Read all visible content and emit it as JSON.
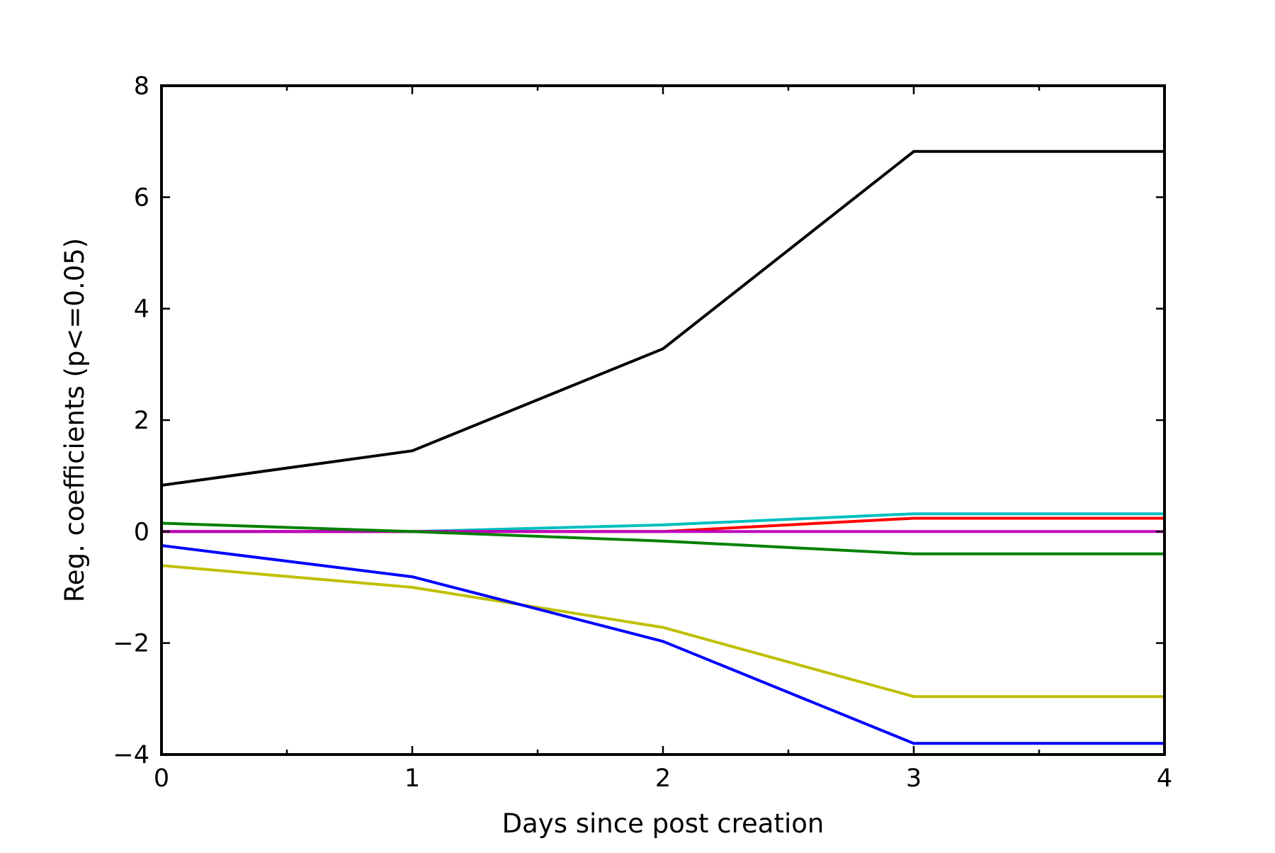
{
  "chart_data": {
    "type": "line",
    "title": "",
    "xlabel": "Days since post creation",
    "ylabel": "Reg. coefficients (p<=0.05)",
    "x": [
      0,
      1,
      2,
      3,
      4
    ],
    "xlim": [
      0,
      4
    ],
    "ylim": [
      -4,
      8
    ],
    "xticks": [
      0,
      1,
      2,
      3,
      4
    ],
    "xtick_labels": [
      "0",
      "1",
      "2",
      "3",
      "4"
    ],
    "yticks": [
      -4,
      -2,
      0,
      2,
      4,
      6,
      8
    ],
    "ytick_labels": [
      "−4",
      "−2",
      "0",
      "2",
      "4",
      "6",
      "8"
    ],
    "grid": false,
    "legend": "none",
    "series": [
      {
        "color": "#000000",
        "values": [
          0.83,
          1.45,
          3.28,
          6.82,
          6.82
        ]
      },
      {
        "color": "#00bfbf",
        "values": [
          0.0,
          0.0,
          0.12,
          0.32,
          0.32
        ]
      },
      {
        "color": "#ff0000",
        "values": [
          0.0,
          0.0,
          0.0,
          0.24,
          0.24
        ]
      },
      {
        "color": "#bf00bf",
        "values": [
          0.0,
          0.0,
          0.0,
          0.0,
          0.0
        ]
      },
      {
        "color": "#008000",
        "values": [
          0.15,
          0.0,
          -0.17,
          -0.4,
          -0.4
        ]
      },
      {
        "color": "#bfbf00",
        "values": [
          -0.61,
          -1.0,
          -1.72,
          -2.96,
          -2.96
        ]
      },
      {
        "color": "#0000ff",
        "values": [
          -0.25,
          -0.81,
          -1.97,
          -3.8,
          -3.8
        ]
      }
    ]
  }
}
